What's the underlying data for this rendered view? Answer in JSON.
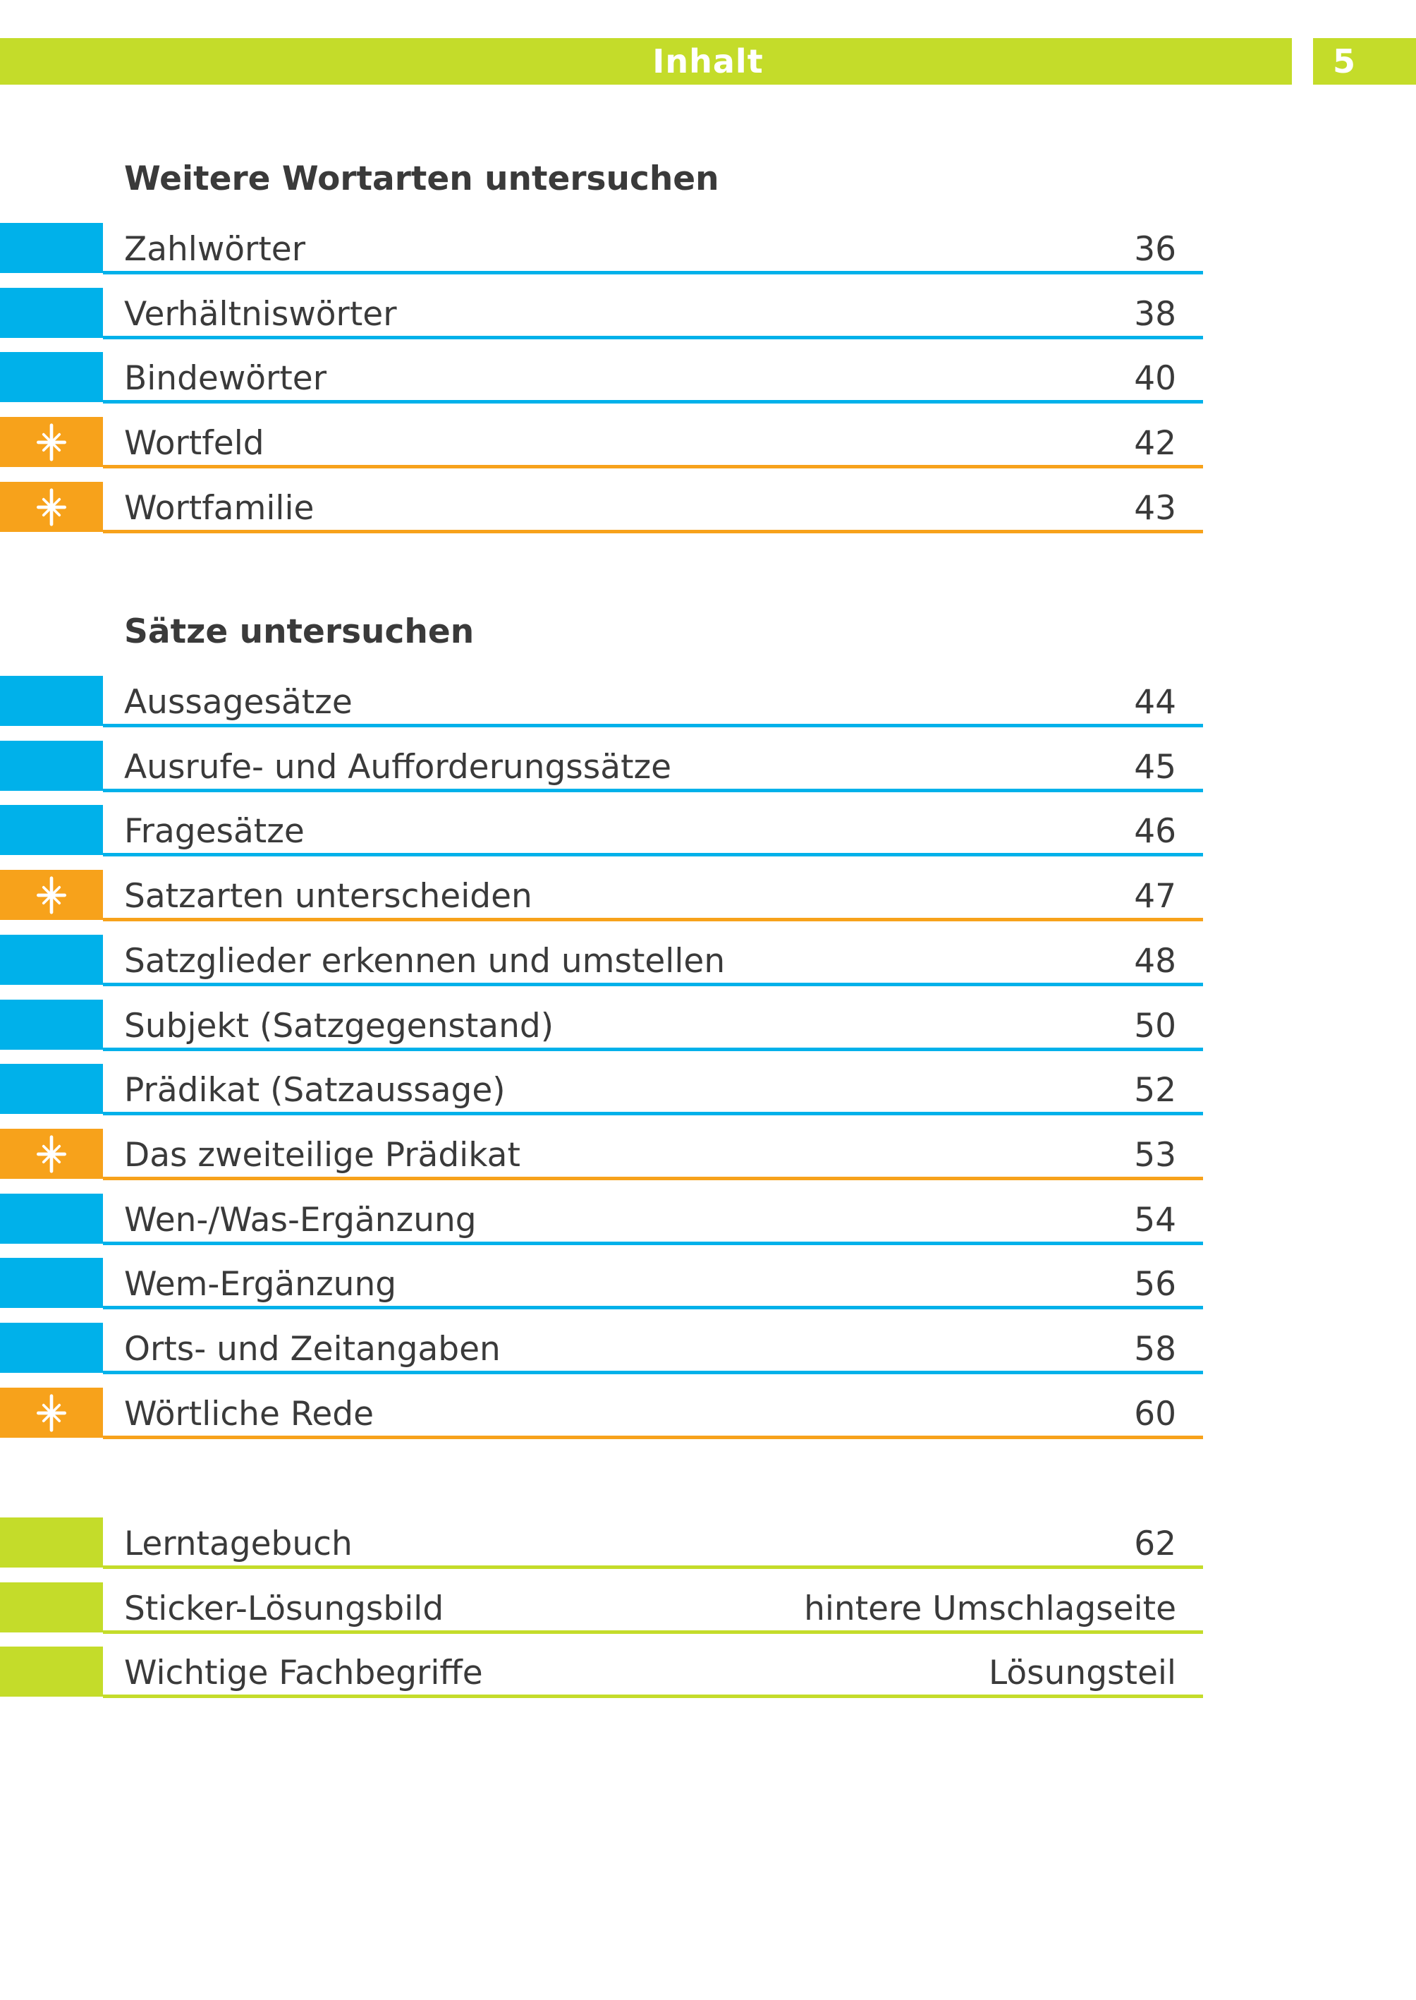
{
  "header": {
    "title": "Inhalt",
    "page_number": "5"
  },
  "colors": {
    "green": "#c4dc2a",
    "blue": "#00b1ea",
    "orange": "#f7a21b",
    "text": "#3a3a3a"
  },
  "sections": [
    {
      "title": "Weitere Wortarten untersuchen",
      "entries": [
        {
          "label": "Zahlwörter",
          "page": "36",
          "color": "blue",
          "star": false
        },
        {
          "label": "Verhältniswörter",
          "page": "38",
          "color": "blue",
          "star": false
        },
        {
          "label": "Bindewörter",
          "page": "40",
          "color": "blue",
          "star": false
        },
        {
          "label": "Wortfeld",
          "page": "42",
          "color": "orange",
          "star": true
        },
        {
          "label": "Wortfamilie",
          "page": "43",
          "color": "orange",
          "star": true
        }
      ]
    },
    {
      "title": "Sätze untersuchen",
      "entries": [
        {
          "label": "Aussagesätze",
          "page": "44",
          "color": "blue",
          "star": false
        },
        {
          "label": "Ausrufe- und Aufforderungssätze",
          "page": "45",
          "color": "blue",
          "star": false
        },
        {
          "label": "Fragesätze",
          "page": "46",
          "color": "blue",
          "star": false
        },
        {
          "label": "Satzarten unterscheiden",
          "page": "47",
          "color": "orange",
          "star": true
        },
        {
          "label": "Satzglieder erkennen und umstellen",
          "page": "48",
          "color": "blue",
          "star": false
        },
        {
          "label": "Subjekt (Satzgegenstand)",
          "page": "50",
          "color": "blue",
          "star": false
        },
        {
          "label": "Prädikat (Satzaussage)",
          "page": "52",
          "color": "blue",
          "star": false
        },
        {
          "label": "Das zweiteilige Prädikat",
          "page": "53",
          "color": "orange",
          "star": true
        },
        {
          "label": "Wen-/Was-Ergänzung",
          "page": "54",
          "color": "blue",
          "star": false
        },
        {
          "label": "Wem-Ergänzung",
          "page": "56",
          "color": "blue",
          "star": false
        },
        {
          "label": "Orts- und Zeitangaben",
          "page": "58",
          "color": "blue",
          "star": false
        },
        {
          "label": "Wörtliche Rede",
          "page": "60",
          "color": "orange",
          "star": true
        }
      ]
    },
    {
      "title": "",
      "entries": [
        {
          "label": "Lerntagebuch",
          "page": "62",
          "color": "green",
          "star": false
        },
        {
          "label": "Sticker-Lösungsbild",
          "page": "hintere Umschlagseite",
          "color": "green",
          "star": false
        },
        {
          "label": "Wichtige Fachbegriffe",
          "page": "Lösungsteil",
          "color": "green",
          "star": false
        }
      ]
    }
  ]
}
